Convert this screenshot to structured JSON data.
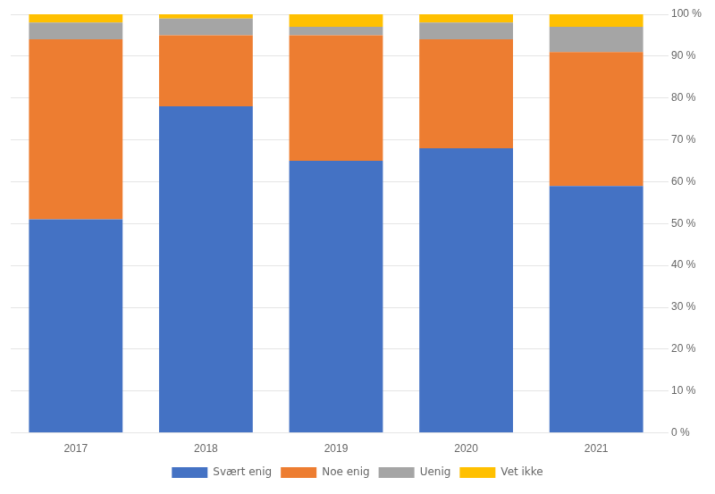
{
  "chart_data": {
    "type": "bar",
    "stacked": true,
    "categories": [
      "2017",
      "2018",
      "2019",
      "2020",
      "2021"
    ],
    "series": [
      {
        "name": "Svært enig",
        "color": "#4472C4",
        "values": [
          0.51,
          0.78,
          0.65,
          0.68,
          0.59
        ]
      },
      {
        "name": "Noe enig",
        "color": "#ED7D31",
        "values": [
          0.43,
          0.17,
          0.3,
          0.26,
          0.32
        ]
      },
      {
        "name": "Uenig",
        "color": "#A5A5A5",
        "values": [
          0.04,
          0.04,
          0.02,
          0.04,
          0.06
        ]
      },
      {
        "name": "Vet ikke",
        "color": "#FFC000",
        "values": [
          0.02,
          0.01,
          0.03,
          0.02,
          0.03
        ]
      }
    ],
    "ylim": [
      0,
      1.0
    ],
    "yticks": [
      {
        "value": 0,
        "label": "0 %"
      },
      {
        "value": 0.1,
        "label": "10 %"
      },
      {
        "value": 0.2,
        "label": "20 %"
      },
      {
        "value": 0.3,
        "label": "30 %"
      },
      {
        "value": 0.4,
        "label": "40 %"
      },
      {
        "value": 0.5,
        "label": "50 %"
      },
      {
        "value": 0.6,
        "label": "60 %"
      },
      {
        "value": 0.7,
        "label": "70 %"
      },
      {
        "value": 0.8,
        "label": "80 %"
      },
      {
        "value": 0.9,
        "label": "90 %"
      },
      {
        "value": 1.0,
        "label": "100 %"
      }
    ],
    "grid": true,
    "legend": "bottom"
  }
}
